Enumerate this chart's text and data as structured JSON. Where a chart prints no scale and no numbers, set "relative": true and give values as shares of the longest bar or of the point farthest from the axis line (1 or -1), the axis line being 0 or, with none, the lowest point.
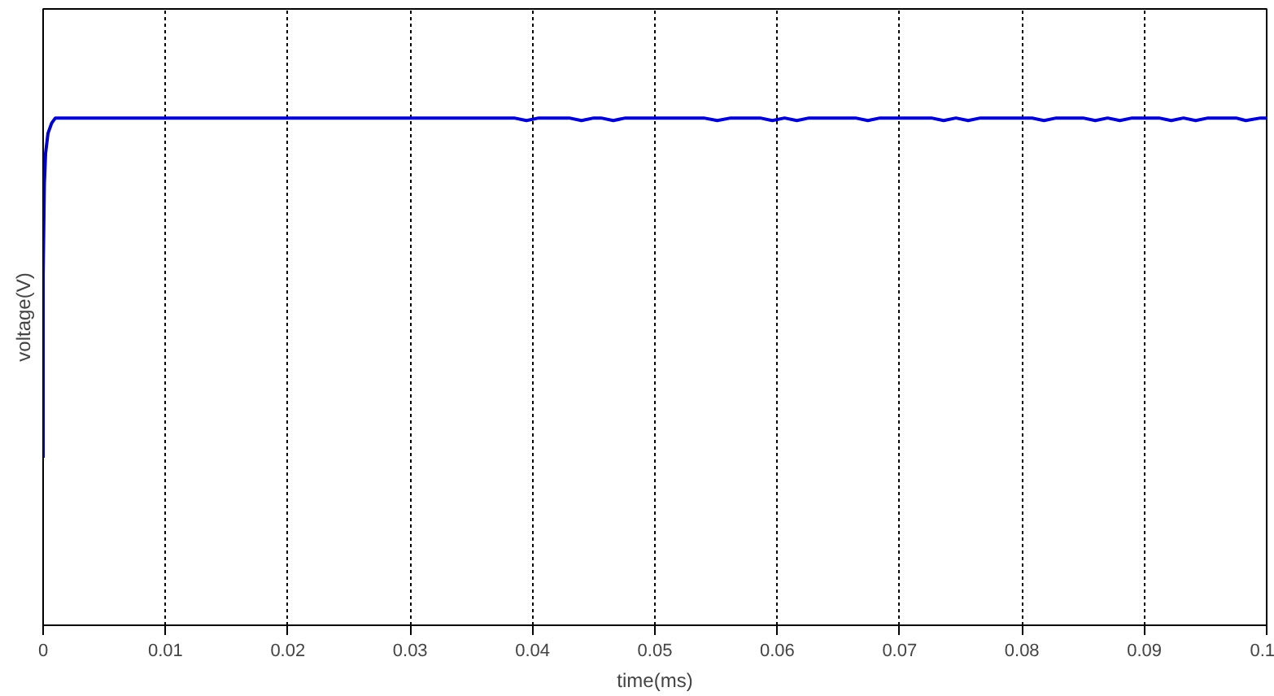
{
  "chart_data": {
    "type": "line",
    "relative": true,
    "xlabel": "time(ms)",
    "ylabel": "voltage(V)",
    "xlim": [
      0,
      0.1
    ],
    "xticks": [
      0,
      0.01,
      0.02,
      0.03,
      0.04,
      0.05,
      0.06,
      0.07,
      0.08,
      0.09,
      0.1
    ],
    "grid": "x",
    "line_style": "solid",
    "x": [
      0,
      0,
      0.0001,
      0.0002,
      0.0004,
      0.0007,
      0.001,
      0.0385,
      0.0395,
      0.0405,
      0.043,
      0.044,
      0.045,
      0.0456,
      0.0466,
      0.0476,
      0.054,
      0.0551,
      0.0562,
      0.0586,
      0.0596,
      0.0606,
      0.0616,
      0.0626,
      0.0664,
      0.0674,
      0.0684,
      0.0726,
      0.0736,
      0.0746,
      0.0756,
      0.0766,
      0.0808,
      0.0818,
      0.0828,
      0.085,
      0.086,
      0.087,
      0.088,
      0.089,
      0.0912,
      0.0922,
      0.0932,
      0.0942,
      0.0952,
      0.0975,
      0.0983,
      0.0995,
      0.1
    ],
    "series": [
      {
        "color": "#0000cc",
        "values": [
          0.33,
          0.69,
          0.87,
          0.93,
          0.97,
          0.99,
          1,
          1,
          0.995,
          1,
          1,
          0.995,
          1,
          1,
          0.995,
          1,
          1,
          0.995,
          1,
          1,
          0.995,
          1,
          0.995,
          1,
          1,
          0.995,
          1,
          1,
          0.995,
          1,
          0.995,
          1,
          1,
          0.995,
          1,
          1,
          0.995,
          1,
          0.995,
          1,
          1,
          0.995,
          1,
          0.995,
          1,
          1,
          0.995,
          1,
          1
        ]
      }
    ]
  }
}
